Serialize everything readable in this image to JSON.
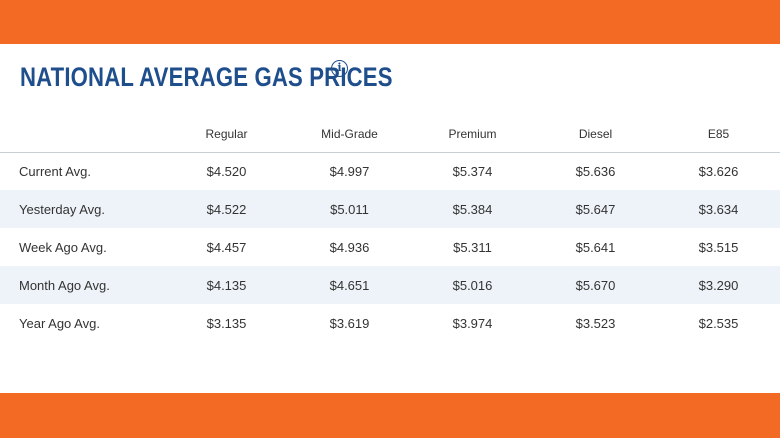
{
  "colors": {
    "accent": "#f26a24",
    "title": "#1f4e8c",
    "row_alt": "#eef3f9",
    "text": "#333333"
  },
  "header": {
    "title": "NATIONAL AVERAGE GAS PRICES",
    "info_icon": "info-icon",
    "info_glyph": "i"
  },
  "table": {
    "columns": [
      "",
      "Regular",
      "Mid-Grade",
      "Premium",
      "Diesel",
      "E85"
    ],
    "rows": [
      {
        "label": "Current Avg.",
        "values": [
          "$4.520",
          "$4.997",
          "$5.374",
          "$5.636",
          "$3.626"
        ]
      },
      {
        "label": "Yesterday Avg.",
        "values": [
          "$4.522",
          "$5.011",
          "$5.384",
          "$5.647",
          "$3.634"
        ]
      },
      {
        "label": "Week Ago Avg.",
        "values": [
          "$4.457",
          "$4.936",
          "$5.311",
          "$5.641",
          "$3.515"
        ]
      },
      {
        "label": "Month Ago Avg.",
        "values": [
          "$4.135",
          "$4.651",
          "$5.016",
          "$5.670",
          "$3.290"
        ]
      },
      {
        "label": "Year Ago Avg.",
        "values": [
          "$3.135",
          "$3.619",
          "$3.974",
          "$3.523",
          "$2.535"
        ]
      }
    ]
  }
}
